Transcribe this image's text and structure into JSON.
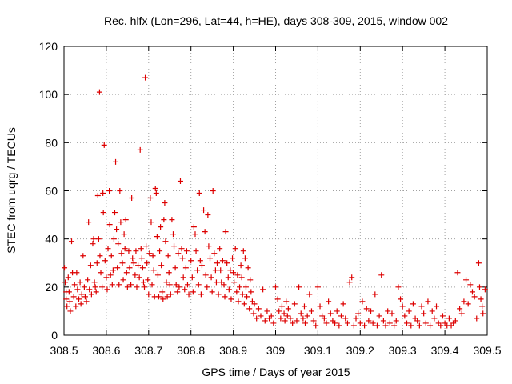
{
  "chart_data": {
    "type": "scatter",
    "title": "Rec. hlfx (Lon=296, Lat=44, h=HE), days 308-309, 2015, window 002",
    "xlabel": "GPS time / Days of year 2015",
    "ylabel": "STEC from uqrg / TECUs",
    "xlim": [
      308.5,
      309.5
    ],
    "ylim": [
      0,
      120
    ],
    "xticks": [
      308.5,
      308.6,
      308.7,
      308.8,
      308.9,
      309,
      309.1,
      309.2,
      309.3,
      309.4,
      309.5
    ],
    "xtick_labels": [
      "308.5",
      "308.6",
      "308.7",
      "308.8",
      "308.9",
      "309",
      "309.1",
      "309.2",
      "309.3",
      "309.4",
      "309.5"
    ],
    "yticks": [
      0,
      20,
      40,
      60,
      80,
      100,
      120
    ],
    "ytick_labels": [
      "0",
      "20",
      "40",
      "60",
      "80",
      "100",
      "120"
    ],
    "grid": true,
    "marker": "+",
    "colors": {
      "marker": "#dd0000",
      "grid": "#a0a0a0",
      "axis": "#000000"
    },
    "series": [
      {
        "points": [
          [
            308.501,
            28
          ],
          [
            308.503,
            22
          ],
          [
            308.505,
            18
          ],
          [
            308.505,
            15
          ],
          [
            308.507,
            12
          ],
          [
            308.51,
            24
          ],
          [
            308.512,
            18
          ],
          [
            308.514,
            14
          ],
          [
            308.515,
            10
          ],
          [
            308.518,
            39
          ],
          [
            308.52,
            26
          ],
          [
            308.523,
            16
          ],
          [
            308.525,
            21
          ],
          [
            308.528,
            12
          ],
          [
            308.53,
            26
          ],
          [
            308.532,
            19
          ],
          [
            308.535,
            15
          ],
          [
            308.538,
            22
          ],
          [
            308.54,
            13
          ],
          [
            308.542,
            17
          ],
          [
            308.545,
            33
          ],
          [
            308.548,
            20
          ],
          [
            308.55,
            16
          ],
          [
            308.553,
            14
          ],
          [
            308.556,
            23
          ],
          [
            308.558,
            47
          ],
          [
            308.56,
            19
          ],
          [
            308.563,
            29
          ],
          [
            308.565,
            17
          ],
          [
            308.568,
            38
          ],
          [
            308.57,
            40
          ],
          [
            308.572,
            22
          ],
          [
            308.574,
            20
          ],
          [
            308.576,
            18
          ],
          [
            308.578,
            30
          ],
          [
            308.58,
            58
          ],
          [
            308.582,
            40
          ],
          [
            308.584,
            101
          ],
          [
            308.585,
            33
          ],
          [
            308.587,
            26
          ],
          [
            308.59,
            20
          ],
          [
            308.592,
            59
          ],
          [
            308.593,
            51
          ],
          [
            308.595,
            79
          ],
          [
            308.597,
            31
          ],
          [
            308.6,
            24
          ],
          [
            308.602,
            19
          ],
          [
            308.604,
            36
          ],
          [
            308.607,
            60
          ],
          [
            308.608,
            46
          ],
          [
            308.61,
            25
          ],
          [
            308.612,
            33
          ],
          [
            308.614,
            21
          ],
          [
            308.616,
            27
          ],
          [
            308.618,
            40
          ],
          [
            308.62,
            51
          ],
          [
            308.622,
            72
          ],
          [
            308.624,
            44
          ],
          [
            308.626,
            28
          ],
          [
            308.628,
            38
          ],
          [
            308.63,
            21
          ],
          [
            308.632,
            60
          ],
          [
            308.634,
            47
          ],
          [
            308.636,
            34
          ],
          [
            308.638,
            30
          ],
          [
            308.64,
            23
          ],
          [
            308.642,
            42
          ],
          [
            308.644,
            36
          ],
          [
            308.646,
            48
          ],
          [
            308.648,
            26
          ],
          [
            308.65,
            20
          ],
          [
            308.653,
            35
          ],
          [
            308.655,
            28
          ],
          [
            308.658,
            21
          ],
          [
            308.66,
            57
          ],
          [
            308.662,
            32
          ],
          [
            308.665,
            30
          ],
          [
            308.668,
            25
          ],
          [
            308.67,
            35
          ],
          [
            308.672,
            20
          ],
          [
            308.675,
            29
          ],
          [
            308.678,
            24
          ],
          [
            308.68,
            77
          ],
          [
            308.682,
            36
          ],
          [
            308.684,
            32
          ],
          [
            308.686,
            28
          ],
          [
            308.688,
            22
          ],
          [
            308.69,
            20
          ],
          [
            308.692,
            107
          ],
          [
            308.694,
            37
          ],
          [
            308.696,
            30
          ],
          [
            308.698,
            23
          ],
          [
            308.7,
            17
          ],
          [
            308.702,
            34
          ],
          [
            308.704,
            57
          ],
          [
            308.706,
            47
          ],
          [
            308.708,
            21
          ],
          [
            308.71,
            33
          ],
          [
            308.712,
            27
          ],
          [
            308.714,
            16
          ],
          [
            308.716,
            61
          ],
          [
            308.718,
            59
          ],
          [
            308.72,
            41
          ],
          [
            308.722,
            25
          ],
          [
            308.724,
            16
          ],
          [
            308.726,
            35
          ],
          [
            308.728,
            45
          ],
          [
            308.73,
            29
          ],
          [
            308.732,
            18
          ],
          [
            308.734,
            15
          ],
          [
            308.736,
            48
          ],
          [
            308.738,
            55
          ],
          [
            308.74,
            39
          ],
          [
            308.742,
            22
          ],
          [
            308.744,
            16
          ],
          [
            308.746,
            33
          ],
          [
            308.748,
            26
          ],
          [
            308.75,
            21
          ],
          [
            308.752,
            17
          ],
          [
            308.755,
            48
          ],
          [
            308.758,
            42
          ],
          [
            308.76,
            37
          ],
          [
            308.763,
            28
          ],
          [
            308.765,
            21
          ],
          [
            308.768,
            18
          ],
          [
            308.77,
            34
          ],
          [
            308.772,
            20
          ],
          [
            308.775,
            64
          ],
          [
            308.778,
            36
          ],
          [
            308.78,
            32
          ],
          [
            308.782,
            24
          ],
          [
            308.785,
            19
          ],
          [
            308.788,
            28
          ],
          [
            308.79,
            35
          ],
          [
            308.792,
            21
          ],
          [
            308.795,
            17
          ],
          [
            308.8,
            31
          ],
          [
            308.803,
            24
          ],
          [
            308.805,
            18
          ],
          [
            308.807,
            45
          ],
          [
            308.81,
            42
          ],
          [
            308.812,
            35
          ],
          [
            308.815,
            27
          ],
          [
            308.818,
            21
          ],
          [
            308.82,
            59
          ],
          [
            308.822,
            31
          ],
          [
            308.824,
            17
          ],
          [
            308.826,
            29
          ],
          [
            308.83,
            52
          ],
          [
            308.833,
            43
          ],
          [
            308.835,
            25
          ],
          [
            308.838,
            20
          ],
          [
            308.84,
            50
          ],
          [
            308.842,
            37
          ],
          [
            308.845,
            32
          ],
          [
            308.848,
            24
          ],
          [
            308.85,
            18
          ],
          [
            308.852,
            60
          ],
          [
            308.855,
            34
          ],
          [
            308.858,
            27
          ],
          [
            308.86,
            22
          ],
          [
            308.862,
            30
          ],
          [
            308.865,
            17
          ],
          [
            308.868,
            36
          ],
          [
            308.87,
            27
          ],
          [
            308.872,
            22
          ],
          [
            308.875,
            31
          ],
          [
            308.878,
            21
          ],
          [
            308.88,
            16
          ],
          [
            308.882,
            43
          ],
          [
            308.885,
            30
          ],
          [
            308.888,
            24
          ],
          [
            308.89,
            19
          ],
          [
            308.893,
            27
          ],
          [
            308.895,
            15
          ],
          [
            308.898,
            32
          ],
          [
            308.9,
            26
          ],
          [
            308.902,
            22
          ],
          [
            308.905,
            36
          ],
          [
            308.908,
            18
          ],
          [
            308.91,
            25
          ],
          [
            308.912,
            14
          ],
          [
            308.915,
            20
          ],
          [
            308.918,
            29
          ],
          [
            308.92,
            24
          ],
          [
            308.922,
            17
          ],
          [
            308.924,
            35
          ],
          [
            308.926,
            13
          ],
          [
            308.928,
            32
          ],
          [
            308.93,
            20
          ],
          [
            308.932,
            16
          ],
          [
            308.935,
            28
          ],
          [
            308.938,
            11
          ],
          [
            308.94,
            23
          ],
          [
            308.942,
            18
          ],
          [
            308.945,
            14
          ],
          [
            308.948,
            9
          ],
          [
            308.95,
            13
          ],
          [
            308.955,
            7
          ],
          [
            308.96,
            11
          ],
          [
            308.965,
            8
          ],
          [
            308.97,
            19
          ],
          [
            308.975,
            6
          ],
          [
            308.98,
            10
          ],
          [
            308.985,
            7
          ],
          [
            308.99,
            8
          ],
          [
            308.995,
            5
          ],
          [
            309,
            20
          ],
          [
            309.005,
            15
          ],
          [
            309.008,
            10
          ],
          [
            309.012,
            7
          ],
          [
            309.015,
            12
          ],
          [
            309.02,
            9
          ],
          [
            309.022,
            6
          ],
          [
            309.025,
            14
          ],
          [
            309.028,
            8
          ],
          [
            309.03,
            11
          ],
          [
            309.035,
            7
          ],
          [
            309.04,
            5
          ],
          [
            309.045,
            13
          ],
          [
            309.05,
            6
          ],
          [
            309.055,
            20
          ],
          [
            309.06,
            9
          ],
          [
            309.065,
            7
          ],
          [
            309.068,
            12
          ],
          [
            309.07,
            5
          ],
          [
            309.075,
            8
          ],
          [
            309.08,
            17
          ],
          [
            309.085,
            10
          ],
          [
            309.09,
            6
          ],
          [
            309.095,
            4
          ],
          [
            309.1,
            20
          ],
          [
            309.105,
            12
          ],
          [
            309.11,
            8
          ],
          [
            309.115,
            7
          ],
          [
            309.12,
            5
          ],
          [
            309.125,
            14
          ],
          [
            309.13,
            9
          ],
          [
            309.135,
            6
          ],
          [
            309.14,
            5
          ],
          [
            309.145,
            10
          ],
          [
            309.15,
            4
          ],
          [
            309.155,
            8
          ],
          [
            309.16,
            13
          ],
          [
            309.165,
            7
          ],
          [
            309.17,
            5
          ],
          [
            309.175,
            22
          ],
          [
            309.18,
            24
          ],
          [
            309.185,
            4
          ],
          [
            309.19,
            7
          ],
          [
            309.195,
            9
          ],
          [
            309.2,
            5
          ],
          [
            309.205,
            14
          ],
          [
            309.21,
            4
          ],
          [
            309.215,
            11
          ],
          [
            309.22,
            6
          ],
          [
            309.225,
            10
          ],
          [
            309.23,
            5
          ],
          [
            309.235,
            17
          ],
          [
            309.24,
            4
          ],
          [
            309.245,
            8
          ],
          [
            309.25,
            25
          ],
          [
            309.255,
            6
          ],
          [
            309.26,
            4
          ],
          [
            309.265,
            10
          ],
          [
            309.27,
            5
          ],
          [
            309.275,
            9
          ],
          [
            309.28,
            4
          ],
          [
            309.285,
            6
          ],
          [
            309.29,
            20
          ],
          [
            309.295,
            15
          ],
          [
            309.3,
            12
          ],
          [
            309.305,
            8
          ],
          [
            309.31,
            5
          ],
          [
            309.315,
            10
          ],
          [
            309.32,
            4
          ],
          [
            309.325,
            13
          ],
          [
            309.33,
            7
          ],
          [
            309.335,
            6
          ],
          [
            309.34,
            4
          ],
          [
            309.345,
            12
          ],
          [
            309.35,
            9
          ],
          [
            309.355,
            5
          ],
          [
            309.36,
            14
          ],
          [
            309.365,
            4
          ],
          [
            309.37,
            10
          ],
          [
            309.375,
            7
          ],
          [
            309.38,
            12
          ],
          [
            309.385,
            5
          ],
          [
            309.39,
            4
          ],
          [
            309.395,
            8
          ],
          [
            309.4,
            5
          ],
          [
            309.405,
            4
          ],
          [
            309.41,
            7
          ],
          [
            309.415,
            4
          ],
          [
            309.42,
            5
          ],
          [
            309.425,
            6
          ],
          [
            309.43,
            26
          ],
          [
            309.435,
            11
          ],
          [
            309.44,
            9
          ],
          [
            309.445,
            14
          ],
          [
            309.45,
            23
          ],
          [
            309.455,
            13
          ],
          [
            309.46,
            21
          ],
          [
            309.465,
            18
          ],
          [
            309.47,
            16
          ],
          [
            309.475,
            7
          ],
          [
            309.48,
            30
          ],
          [
            309.482,
            20
          ],
          [
            309.485,
            15
          ],
          [
            309.488,
            12
          ],
          [
            309.49,
            9
          ],
          [
            309.495,
            19
          ]
        ]
      }
    ]
  }
}
